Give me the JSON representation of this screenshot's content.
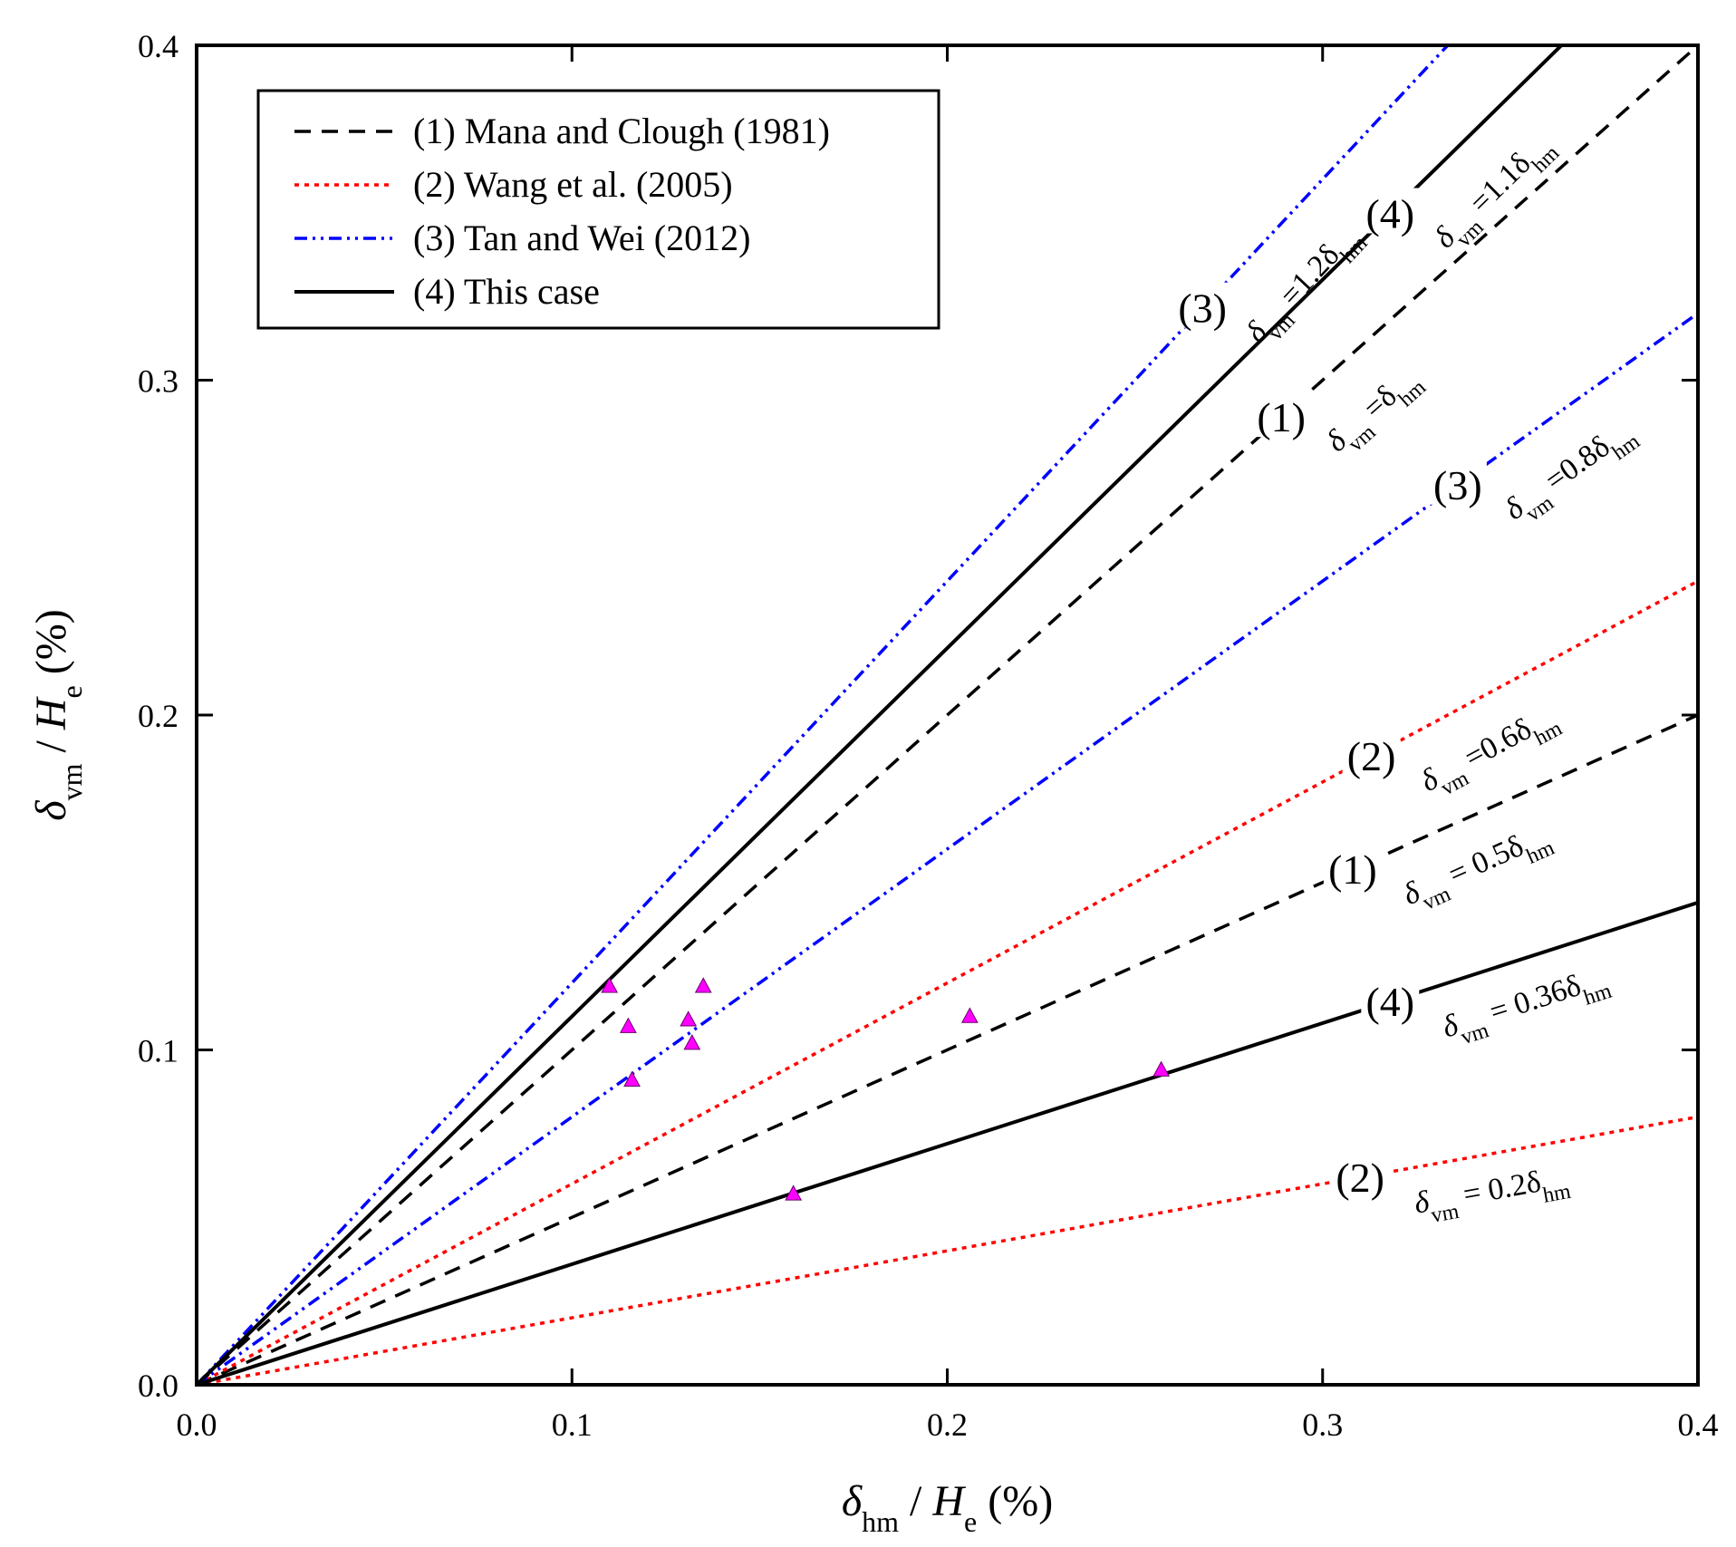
{
  "chart_data": {
    "type": "line",
    "title": "",
    "x_axis": {
      "label_main": "δ",
      "label_sub": "hm",
      "label_rest": " / ",
      "label_var": "H",
      "label_var_sub": "e",
      "label_unit": " (%)",
      "range": [
        0,
        0.4
      ],
      "ticks": [
        "0.0",
        "0.1",
        "0.2",
        "0.3",
        "0.4"
      ]
    },
    "y_axis": {
      "label_main": "δ",
      "label_sub": "vm",
      "label_rest": " / ",
      "label_var": "H",
      "label_var_sub": "e",
      "label_unit": " (%)",
      "range": [
        0,
        0.4
      ],
      "ticks": [
        "0.0",
        "0.1",
        "0.2",
        "0.3",
        "0.4"
      ]
    },
    "legend": {
      "position": "top-left",
      "entries": [
        {
          "label": "(1) Mana and Clough (1981)",
          "style": "dashed",
          "color": "#000000"
        },
        {
          "label": "(2) Wang et al. (2005)",
          "style": "dotted",
          "color": "#ff0000"
        },
        {
          "label": "(3) Tan and Wei (2012)",
          "style": "dash-dot-dot",
          "color": "#0000ff"
        },
        {
          "label": "(4) This case",
          "style": "solid",
          "color": "#000000"
        }
      ]
    },
    "series": [
      {
        "name": "(1) upper",
        "slope": 1.0,
        "style": "dashed",
        "color": "#000000",
        "tag": "(1)",
        "tag_x": 0.289,
        "eq_pre": "δ",
        "eq_sub1": "vm",
        "eq_mid": " =δ",
        "eq_sub2": "hm",
        "eq_coef": ""
      },
      {
        "name": "(1) lower",
        "slope": 0.5,
        "style": "dashed",
        "color": "#000000",
        "tag": "(1)",
        "tag_x": 0.308,
        "eq_pre": "δ",
        "eq_sub1": "vm",
        "eq_mid": " = 0.5δ",
        "eq_sub2": "hm",
        "eq_coef": "0.5"
      },
      {
        "name": "(2) upper",
        "slope": 0.6,
        "style": "dotted",
        "color": "#ff0000",
        "tag": "(2)",
        "tag_x": 0.313,
        "eq_pre": "δ",
        "eq_sub1": "vm",
        "eq_mid": " =0.6δ",
        "eq_sub2": "hm",
        "eq_coef": "0.6"
      },
      {
        "name": "(2) lower",
        "slope": 0.2,
        "style": "dotted",
        "color": "#ff0000",
        "tag": "(2)",
        "tag_x": 0.31,
        "eq_pre": "δ",
        "eq_sub1": "vm",
        "eq_mid": " = 0.2δ",
        "eq_sub2": "hm",
        "eq_coef": "0.2"
      },
      {
        "name": "(3) upper",
        "slope": 1.2,
        "style": "dash-dot-dot",
        "color": "#0000ff",
        "tag": "(3)",
        "tag_x": 0.268,
        "eq_pre": "δ",
        "eq_sub1": "vm",
        "eq_mid": " =1.2δ",
        "eq_sub2": "hm",
        "eq_coef": "1.2"
      },
      {
        "name": "(3) lower",
        "slope": 0.8,
        "style": "dash-dot-dot",
        "color": "#0000ff",
        "tag": "(3)",
        "tag_x": 0.336,
        "eq_pre": "δ",
        "eq_sub1": "vm",
        "eq_mid": " =0.8δ",
        "eq_sub2": "hm",
        "eq_coef": "0.8"
      },
      {
        "name": "(4) upper",
        "slope": 1.1,
        "style": "solid",
        "color": "#000000",
        "tag": "(4)",
        "tag_x": 0.318,
        "eq_pre": "δ",
        "eq_sub1": "vm",
        "eq_mid": " =1.1δ",
        "eq_sub2": "hm",
        "eq_coef": "1.1"
      },
      {
        "name": "(4) lower",
        "slope": 0.36,
        "style": "solid",
        "color": "#000000",
        "tag": "(4)",
        "tag_x": 0.318,
        "eq_pre": "δ",
        "eq_sub1": "vm",
        "eq_mid": " = 0.36δ",
        "eq_sub2": "hm",
        "eq_coef": "0.36"
      }
    ],
    "points": {
      "name": "measured",
      "marker": "triangle",
      "color": "#ff00ff",
      "x": [
        0.11,
        0.115,
        0.116,
        0.131,
        0.132,
        0.135,
        0.159,
        0.206,
        0.257
      ],
      "y": [
        0.119,
        0.107,
        0.091,
        0.109,
        0.102,
        0.119,
        0.057,
        0.11,
        0.094
      ]
    }
  }
}
